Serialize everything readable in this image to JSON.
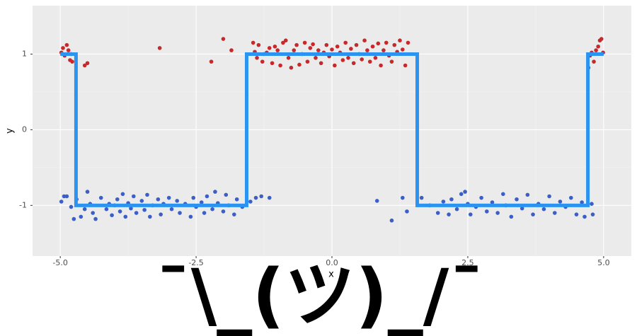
{
  "chart_data": {
    "type": "scatter",
    "x_label": "x",
    "y_label": "y",
    "xlim": [
      -5.51,
      5.51
    ],
    "ylim": [
      -1.67,
      1.64
    ],
    "xticks": [
      {
        "value": -5,
        "label": "-5.0"
      },
      {
        "value": -2.5,
        "label": "-2.5"
      },
      {
        "value": 0,
        "label": "0.0"
      },
      {
        "value": 2.5,
        "label": "2.5"
      },
      {
        "value": 5,
        "label": "5.0"
      }
    ],
    "yticks": [
      -1,
      0,
      1
    ],
    "x_minor_breaks": [
      -3.75,
      -1.25,
      1.25,
      3.75
    ],
    "y_minor_breaks": [
      -0.5,
      0.5
    ],
    "grid": true,
    "annotation": "¯\\_(ツ)_/¯",
    "series": [
      {
        "color": "#c8282a",
        "x": [
          -4.98,
          -4.95,
          -4.92,
          -4.88,
          -4.85,
          -4.82,
          -4.8,
          -4.78,
          -4.55,
          -4.5,
          -3.17,
          -2.0,
          -1.85,
          -2.22,
          -1.45,
          -1.42,
          -1.38,
          -1.35,
          -1.28,
          -1.25,
          -1.2,
          -1.15,
          -1.1,
          -1.05,
          -1.0,
          -0.95,
          -0.9,
          -0.85,
          -0.8,
          -0.75,
          -0.7,
          -0.65,
          -0.6,
          -0.55,
          -0.5,
          -0.45,
          -0.4,
          -0.35,
          -0.3,
          -0.25,
          -0.2,
          -0.15,
          -0.1,
          -0.05,
          0.0,
          0.05,
          0.1,
          0.15,
          0.2,
          0.25,
          0.3,
          0.35,
          0.4,
          0.45,
          0.5,
          0.55,
          0.6,
          0.65,
          0.7,
          0.75,
          0.8,
          0.85,
          0.9,
          0.95,
          1.0,
          1.05,
          1.1,
          1.15,
          1.2,
          1.25,
          1.3,
          1.35,
          1.4,
          4.72,
          4.75,
          4.78,
          4.82,
          4.86,
          4.9,
          4.93,
          4.96,
          4.99
        ],
        "values": [
          1.02,
          1.08,
          0.98,
          1.12,
          1.05,
          0.92,
          1.0,
          0.9,
          0.85,
          0.88,
          1.08,
          1.2,
          1.05,
          0.9,
          1.15,
          1.03,
          0.95,
          1.12,
          0.9,
          1.0,
          1.02,
          1.08,
          0.88,
          1.1,
          1.05,
          0.85,
          1.15,
          1.18,
          0.95,
          0.82,
          1.05,
          1.12,
          0.86,
          1.0,
          1.15,
          0.9,
          1.08,
          1.13,
          0.95,
          1.05,
          0.88,
          1.02,
          1.12,
          0.97,
          1.06,
          0.85,
          1.1,
          1.02,
          0.92,
          1.15,
          0.95,
          1.07,
          0.88,
          1.12,
          1.0,
          0.93,
          1.18,
          1.05,
          0.9,
          1.1,
          0.95,
          1.14,
          0.85,
          1.05,
          1.15,
          0.98,
          0.9,
          1.12,
          1.03,
          1.18,
          1.06,
          0.85,
          1.15,
          0.82,
          0.98,
          1.02,
          0.9,
          1.05,
          1.1,
          1.18,
          1.2,
          1.02
        ]
      },
      {
        "color": "#3b5fc8",
        "x": [
          -4.98,
          -4.93,
          -4.88,
          -4.8,
          -4.75,
          -4.7,
          -4.62,
          -4.55,
          -4.5,
          -4.45,
          -4.4,
          -4.35,
          -4.25,
          -4.15,
          -4.1,
          -4.05,
          -4.0,
          -3.95,
          -3.9,
          -3.85,
          -3.8,
          -3.75,
          -3.7,
          -3.65,
          -3.6,
          -3.5,
          -3.45,
          -3.4,
          -3.35,
          -3.3,
          -3.2,
          -3.15,
          -3.1,
          -3.0,
          -2.95,
          -2.85,
          -2.8,
          -2.7,
          -2.6,
          -2.55,
          -2.5,
          -2.4,
          -2.35,
          -2.3,
          -2.2,
          -2.15,
          -2.1,
          -2.0,
          -1.95,
          -1.9,
          -1.8,
          -1.75,
          -1.65,
          -1.5,
          -1.4,
          -1.3,
          -1.15,
          0.83,
          1.1,
          1.3,
          1.38,
          1.65,
          1.8,
          1.95,
          2.05,
          2.15,
          2.2,
          2.3,
          2.38,
          2.45,
          2.5,
          2.55,
          2.65,
          2.75,
          2.85,
          2.95,
          3.05,
          3.15,
          3.2,
          3.3,
          3.4,
          3.5,
          3.6,
          3.7,
          3.8,
          3.9,
          4.0,
          4.1,
          4.2,
          4.3,
          4.4,
          4.5,
          4.6,
          4.65,
          4.8,
          4.78
        ],
        "values": [
          -0.95,
          -0.88,
          -0.88,
          -1.02,
          -1.18,
          -0.92,
          -1.15,
          -1.05,
          -0.82,
          -0.98,
          -1.1,
          -1.18,
          -0.9,
          -1.05,
          -0.98,
          -1.13,
          -1.0,
          -0.92,
          -1.08,
          -0.85,
          -1.15,
          -0.97,
          -1.04,
          -0.88,
          -1.1,
          -0.94,
          -1.06,
          -0.86,
          -1.15,
          -1.0,
          -0.92,
          -1.12,
          -0.98,
          -0.9,
          -1.05,
          -0.94,
          -1.1,
          -0.98,
          -1.15,
          -0.9,
          -1.02,
          -0.96,
          -1.1,
          -0.88,
          -1.05,
          -0.82,
          -0.97,
          -1.08,
          -0.86,
          -1.0,
          -1.12,
          -0.92,
          -1.02,
          -0.95,
          -0.9,
          -0.88,
          -0.9,
          -0.94,
          -1.2,
          -0.9,
          -1.08,
          -0.9,
          -1.0,
          -1.1,
          -0.95,
          -1.12,
          -0.92,
          -1.05,
          -0.85,
          -0.82,
          -0.98,
          -1.12,
          -1.02,
          -0.9,
          -1.08,
          -0.96,
          -1.1,
          -0.85,
          -1.0,
          -1.15,
          -0.92,
          -1.04,
          -0.86,
          -1.12,
          -0.98,
          -1.05,
          -0.88,
          -1.1,
          -0.95,
          -1.02,
          -0.9,
          -1.12,
          -0.96,
          -1.15,
          -1.12,
          -0.98
        ]
      },
      {
        "type": "line",
        "color": "#2b93f0",
        "x": [
          -5,
          -4.71,
          -4.71,
          -1.57,
          -1.57,
          1.57,
          1.57,
          4.71,
          4.71,
          5
        ],
        "values": [
          1,
          1,
          -1,
          -1,
          1,
          1,
          -1,
          -1,
          1,
          1
        ]
      }
    ]
  }
}
